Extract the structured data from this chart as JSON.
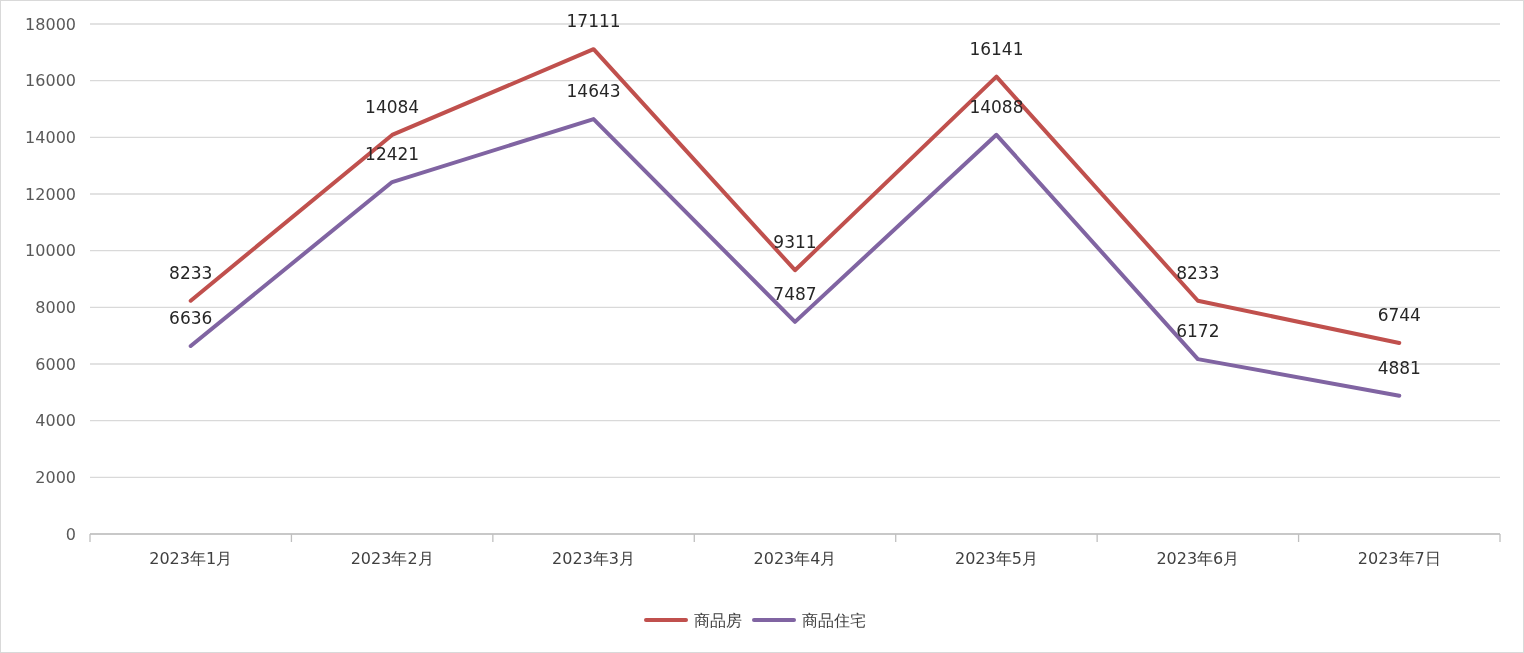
{
  "chart_data": {
    "type": "line",
    "categories": [
      "2023年1月",
      "2023年2月",
      "2023年3月",
      "2023年4月",
      "2023年5月",
      "2023年6月",
      "2023年7日"
    ],
    "series": [
      {
        "name": "商品房",
        "color": "#c0504d",
        "values": [
          8233,
          14084,
          17111,
          9311,
          16141,
          8233,
          6744
        ]
      },
      {
        "name": "商品住宅",
        "color": "#8064a2",
        "values": [
          6636,
          12421,
          14643,
          7487,
          14088,
          6172,
          4881
        ]
      }
    ],
    "ylim": [
      0,
      18000
    ],
    "yticks": [
      0,
      2000,
      4000,
      6000,
      8000,
      10000,
      12000,
      14000,
      16000,
      18000
    ],
    "grid": "y",
    "legend": "bottom",
    "data_labels": true,
    "marker": "none",
    "line_style": "solid"
  }
}
